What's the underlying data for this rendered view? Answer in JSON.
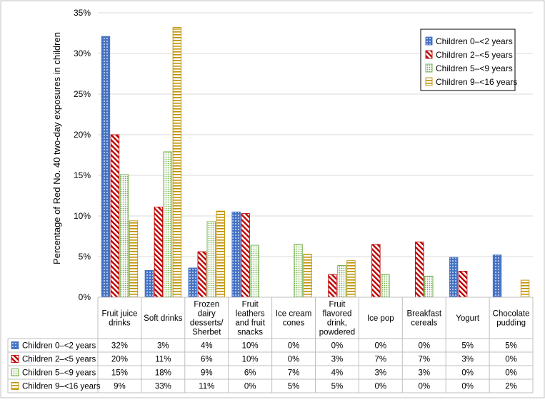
{
  "chart_data": {
    "type": "bar",
    "ylabel": "Percentage of Red No. 40 two-day exposures in children",
    "ylim": [
      0,
      35
    ],
    "yticks": [
      "0%",
      "5%",
      "10%",
      "15%",
      "20%",
      "25%",
      "30%",
      "35%"
    ],
    "categories": [
      [
        "Fruit juice",
        "drinks"
      ],
      [
        "Soft drinks"
      ],
      [
        "Frozen",
        "dairy",
        "desserts/",
        "Sherbet"
      ],
      [
        "Fruit",
        "leathers",
        "and fruit",
        "snacks"
      ],
      [
        "Ice cream",
        "cones"
      ],
      [
        "Fruit",
        "flavored",
        "drink,",
        "powdered"
      ],
      [
        "Ice pop"
      ],
      [
        "Breakfast",
        "cereals"
      ],
      [
        "Yogurt"
      ],
      [
        "Chocolate",
        "pudding"
      ]
    ],
    "series": [
      {
        "name": "Children 0–<2 years",
        "color": "#4472c4",
        "values": [
          32.1,
          3.3,
          3.6,
          10.5,
          0,
          0,
          0,
          0,
          4.9,
          5.2
        ],
        "labels": [
          "32%",
          "3%",
          "4%",
          "10%",
          "0%",
          "0%",
          "0%",
          "0%",
          "5%",
          "5%"
        ]
      },
      {
        "name": "Children 2–<5 years",
        "color": "#c00000",
        "values": [
          20.0,
          11.1,
          5.6,
          10.3,
          0,
          2.8,
          6.5,
          6.8,
          3.2,
          0
        ],
        "labels": [
          "20%",
          "11%",
          "6%",
          "10%",
          "0%",
          "3%",
          "7%",
          "7%",
          "3%",
          "0%"
        ]
      },
      {
        "name": "Children 5–<9 years",
        "color": "#70ad47",
        "values": [
          15.1,
          17.9,
          9.3,
          6.4,
          6.5,
          3.9,
          2.8,
          2.6,
          0,
          0
        ],
        "labels": [
          "15%",
          "18%",
          "9%",
          "6%",
          "7%",
          "4%",
          "3%",
          "3%",
          "0%",
          "0%"
        ]
      },
      {
        "name": "Children 9–<16 years",
        "color": "#bf9000",
        "values": [
          9.4,
          33.2,
          10.6,
          0,
          5.3,
          4.5,
          0,
          0,
          0,
          2.1
        ],
        "labels": [
          "9%",
          "33%",
          "11%",
          "0%",
          "5%",
          "5%",
          "0%",
          "0%",
          "0%",
          "2%"
        ]
      }
    ]
  }
}
